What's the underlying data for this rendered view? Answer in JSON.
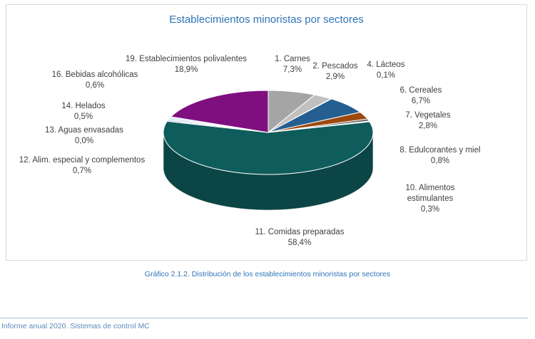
{
  "chart_data": {
    "type": "pie",
    "title": "Establecimientos minoristas por sectores",
    "categories": [
      "1. Carnes",
      "2. Pescados",
      "4. Lácteos",
      "6. Cereales",
      "7. Vegetales",
      "8. Edulcorantes y miel",
      "10. Alimentos estimulantes",
      "11. Comidas preparadas",
      "12. Alim. especial y complementos",
      "13. Aguas envasadas",
      "14. Helados",
      "16. Bebidas alcohólicas",
      "19. Establecimientos polivalentes"
    ],
    "values": [
      7.3,
      2.9,
      0.1,
      6.7,
      2.8,
      0.8,
      0.3,
      58.4,
      0.7,
      0.0,
      0.5,
      0.6,
      18.9
    ],
    "value_labels": [
      "7,3%",
      "2,9%",
      "0,1%",
      "6,7%",
      "2,8%",
      "0,8%",
      "0,3%",
      "58,4%",
      "0,7%",
      "0,0%",
      "0,5%",
      "0,6%",
      "18,9%"
    ],
    "colors": [
      "#a5a5a5",
      "#c0c0c0",
      "#7f7f7f",
      "#255e91",
      "#9e480e",
      "#636363",
      "#997300",
      "#0f5c5c",
      "#c9dcef",
      "#e0ebf7",
      "#b4c7e7",
      "#d6e3f3",
      "#7f0f7e"
    ]
  },
  "caption": "Gráfico 2.1.2. Distribución de los establecimientos minoristas por sectores",
  "footer": "Informe anual 2020. Sistemas de control MC"
}
